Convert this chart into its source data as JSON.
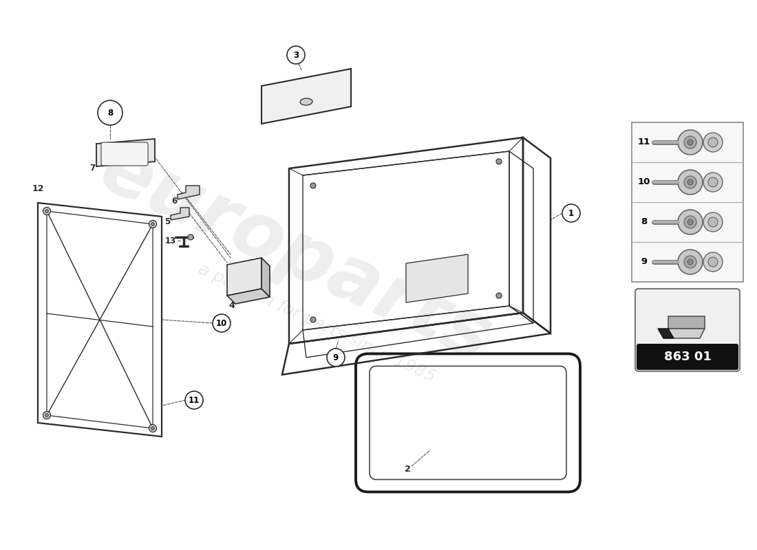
{
  "background_color": "#ffffff",
  "line_color": "#2a2a2a",
  "part_code": "863 01",
  "sidebar_screws": [
    "11",
    "10",
    "8",
    "9"
  ],
  "watermark1": "europarts",
  "watermark2": "a passion for parts since 1985"
}
